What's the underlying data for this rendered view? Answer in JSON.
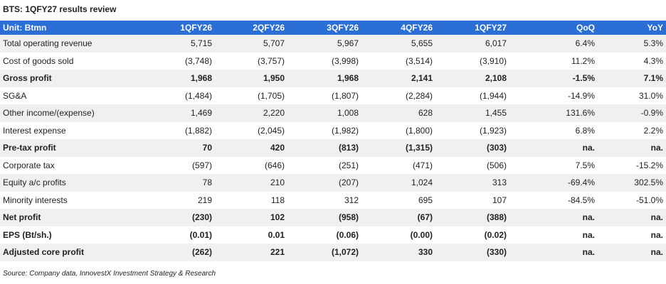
{
  "title": "BTS: 1QFY27 results review",
  "table": {
    "header": [
      "Unit: Btmn",
      "1QFY26",
      "2QFY26",
      "3QFY26",
      "4QFY26",
      "1QFY27",
      "QoQ",
      "YoY"
    ],
    "rows": [
      {
        "cells": [
          "Total operating revenue",
          "5,715",
          "5,707",
          "5,967",
          "5,655",
          "6,017",
          "6.4%",
          "5.3%"
        ],
        "bold": false
      },
      {
        "cells": [
          "Cost of goods sold",
          "(3,748)",
          "(3,757)",
          "(3,998)",
          "(3,514)",
          "(3,910)",
          "11.2%",
          "4.3%"
        ],
        "bold": false
      },
      {
        "cells": [
          "Gross profit",
          "1,968",
          "1,950",
          "1,968",
          "2,141",
          "2,108",
          "-1.5%",
          "7.1%"
        ],
        "bold": true
      },
      {
        "cells": [
          "SG&A",
          "(1,484)",
          "(1,705)",
          "(1,807)",
          "(2,284)",
          "(1,944)",
          "-14.9%",
          "31.0%"
        ],
        "bold": false
      },
      {
        "cells": [
          "Other income/(expense)",
          "1,469",
          "2,220",
          "1,008",
          "628",
          "1,455",
          "131.6%",
          "-0.9%"
        ],
        "bold": false
      },
      {
        "cells": [
          "Interest expense",
          "(1,882)",
          "(2,045)",
          "(1,982)",
          "(1,800)",
          "(1,923)",
          "6.8%",
          "2.2%"
        ],
        "bold": false
      },
      {
        "cells": [
          "Pre-tax profit",
          "70",
          "420",
          "(813)",
          "(1,315)",
          "(303)",
          "na.",
          "na."
        ],
        "bold": true
      },
      {
        "cells": [
          "Corporate tax",
          "(597)",
          "(646)",
          "(251)",
          "(471)",
          "(506)",
          "7.5%",
          "-15.2%"
        ],
        "bold": false
      },
      {
        "cells": [
          "Equity a/c profits",
          "78",
          "210",
          "(207)",
          "1,024",
          "313",
          "-69.4%",
          "302.5%"
        ],
        "bold": false
      },
      {
        "cells": [
          "Minority interests",
          "219",
          "118",
          "312",
          "695",
          "107",
          "-84.5%",
          "-51.0%"
        ],
        "bold": false
      },
      {
        "cells": [
          "Net profit",
          "(230)",
          "102",
          "(958)",
          "(67)",
          "(388)",
          "na.",
          "na."
        ],
        "bold": true
      },
      {
        "cells": [
          "EPS (Bt/sh.)",
          "(0.01)",
          "0.01",
          "(0.06)",
          "(0.00)",
          "(0.02)",
          "na.",
          "na."
        ],
        "bold": true
      },
      {
        "cells": [
          "Adjusted core profit",
          "(262)",
          "221",
          "(1,072)",
          "330",
          "(330)",
          "na.",
          "na."
        ],
        "bold": true
      }
    ]
  },
  "source": "Source: Company data, InnovestX Investment Strategy & Research"
}
